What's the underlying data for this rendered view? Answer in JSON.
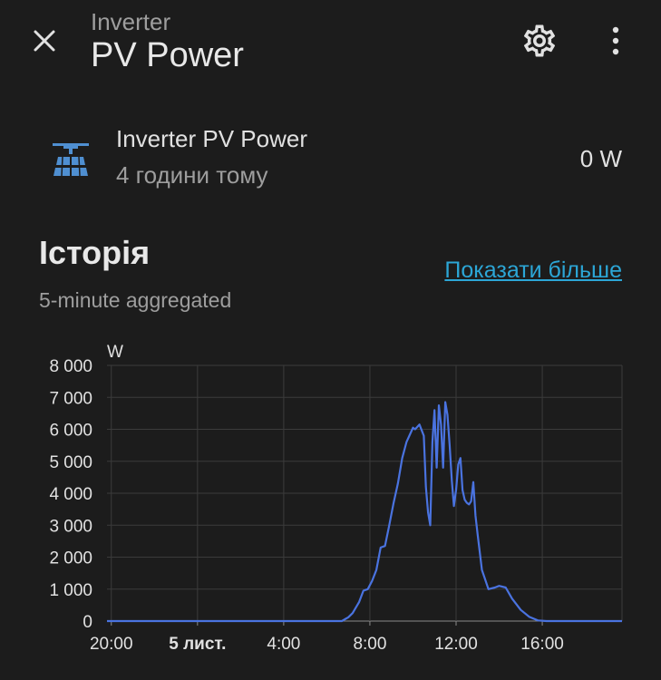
{
  "header": {
    "subtitle": "Inverter",
    "title": "PV Power",
    "close_icon": "close-icon",
    "settings_icon": "gear-icon",
    "more_icon": "more-vertical-icon"
  },
  "entity": {
    "icon": "solar-panel-icon",
    "name": "Inverter PV Power",
    "last_changed": "4 години тому",
    "state": "0 W"
  },
  "history": {
    "title": "Історія",
    "show_more": "Показати більше",
    "aggregation": "5-minute aggregated"
  },
  "colors": {
    "background": "#1c1c1c",
    "line": "#4a73e0",
    "link": "#2ca6d6",
    "icon": "#4f8fd1"
  },
  "chart_data": {
    "type": "line",
    "ylabel": "W",
    "ylim": [
      0,
      8000
    ],
    "yticks": [
      "0",
      "1 000",
      "2 000",
      "3 000",
      "4 000",
      "5 000",
      "6 000",
      "7 000",
      "8 000"
    ],
    "xticks": [
      {
        "label": "20:00",
        "hour": -4,
        "bold": false
      },
      {
        "label": "5 лист.",
        "hour": 0,
        "bold": true
      },
      {
        "label": "4:00",
        "hour": 4,
        "bold": false
      },
      {
        "label": "8:00",
        "hour": 8,
        "bold": false
      },
      {
        "label": "12:00",
        "hour": 12,
        "bold": false
      },
      {
        "label": "16:00",
        "hour": 16,
        "bold": false
      }
    ],
    "xlim_hours": [
      -4.2,
      19.7
    ],
    "series": [
      {
        "x_hours": [
          -4.2,
          6.4,
          6.7,
          7.0,
          7.2,
          7.5,
          7.7,
          7.9,
          8.1,
          8.3,
          8.5,
          8.7,
          8.9,
          9.1,
          9.3,
          9.5,
          9.7,
          9.9,
          10.0,
          10.1,
          10.3,
          10.5,
          10.6,
          10.7,
          10.8,
          10.9,
          11.0,
          11.1,
          11.2,
          11.3,
          11.4,
          11.5,
          11.6,
          11.7,
          11.8,
          11.9,
          12.0,
          12.1,
          12.2,
          12.3,
          12.4,
          12.5,
          12.6,
          12.7,
          12.8,
          12.9,
          13.0,
          13.2,
          13.5,
          13.8,
          14.0,
          14.3,
          14.6,
          15.0,
          15.4,
          15.8,
          16.2,
          16.6,
          19.7
        ],
        "y": [
          0,
          0,
          0,
          120,
          250,
          600,
          950,
          1000,
          1250,
          1600,
          2300,
          2350,
          3000,
          3700,
          4300,
          5100,
          5600,
          5900,
          6050,
          6000,
          6150,
          5800,
          4200,
          3400,
          3000,
          5600,
          6600,
          4800,
          6750,
          6150,
          4800,
          6850,
          6450,
          5500,
          4400,
          3600,
          4100,
          4900,
          5100,
          4100,
          3800,
          3700,
          3650,
          3750,
          4350,
          3300,
          2700,
          1600,
          1000,
          1050,
          1100,
          1050,
          700,
          350,
          130,
          20,
          0,
          0,
          0
        ]
      }
    ]
  }
}
